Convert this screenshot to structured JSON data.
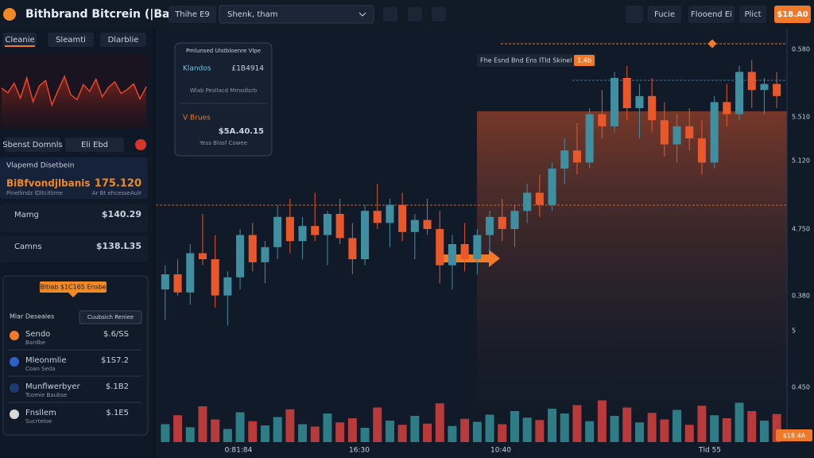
{
  "header": {
    "title": "Bithbrand Bitcrein (|Bathi)",
    "tab": "Thihe E9",
    "search": "Shenk, tham",
    "buttons": [
      "Fucie",
      "Flooend Ei",
      "Plict"
    ],
    "price": "$18.A0"
  },
  "sidebar": {
    "tabs": [
      "Cleanie",
      "Sleamti",
      "Dlarblie"
    ],
    "sparkline": {
      "values": [
        55,
        48,
        62,
        40,
        70,
        35,
        58,
        66,
        30,
        52,
        72,
        45,
        38,
        60,
        50,
        68,
        42,
        56,
        64,
        47,
        53,
        61,
        39,
        57
      ],
      "ylim": [
        0,
        100
      ]
    },
    "buttons": [
      "Sbenst Domnls",
      "Eli Ebd"
    ],
    "watch": {
      "title": "Vlapemd Disetbein",
      "name": "BiBfvondjlbanis",
      "value": "175.120",
      "sub1": "Pinellindz lDltcitlime",
      "sub2": "Ar Bt ehcesseAulr"
    },
    "rows": [
      {
        "name": "Mamg",
        "value": "$140.29"
      },
      {
        "name": "Camns",
        "value": "$138.L35"
      }
    ],
    "popover": "Bltiab $1C165 Ensbe",
    "list": {
      "title": "Mlar Deseales",
      "select": "Cuubsich Reniee",
      "items": [
        {
          "name": "Sendo",
          "value": "$.6/SS",
          "sub": "Bardbe"
        },
        {
          "name": "Mleonmlie",
          "value": "$1S7.2",
          "sub": "Coan Seda"
        },
        {
          "name": "Munflwerbyer",
          "value": "$.1B2",
          "sub": "Tcomie Baubse"
        },
        {
          "name": "Fnsllem",
          "value": "$.1E5",
          "sub": "Sucrteloe"
        }
      ]
    }
  },
  "tooltip": {
    "title": "Pmlunsed Ulstbloenre Vlpe",
    "rows": [
      {
        "name": "Klandos",
        "value": "£1B4914",
        "sub": "Wlab Pesllacd Mmsdlsrb"
      },
      {
        "name": "V Brues",
        "value": "$5A.40.15",
        "sub": "Yess Blasf Cowee"
      }
    ]
  },
  "chart": {
    "type": "candlestick",
    "label": "Fhe Esnd Bnd Ens ITId Skinel",
    "badge": "1.4b",
    "ylim": [
      0,
      100
    ],
    "candles": [
      [
        20,
        28,
        10,
        25
      ],
      [
        25,
        30,
        18,
        19
      ],
      [
        19,
        35,
        15,
        32
      ],
      [
        32,
        45,
        28,
        30
      ],
      [
        30,
        38,
        14,
        18
      ],
      [
        18,
        26,
        8,
        24
      ],
      [
        24,
        40,
        20,
        38
      ],
      [
        38,
        42,
        26,
        29
      ],
      [
        29,
        36,
        22,
        34
      ],
      [
        34,
        48,
        30,
        44
      ],
      [
        44,
        50,
        32,
        36
      ],
      [
        36,
        44,
        30,
        41
      ],
      [
        41,
        52,
        36,
        38
      ],
      [
        38,
        46,
        28,
        45
      ],
      [
        45,
        50,
        35,
        37
      ],
      [
        37,
        42,
        25,
        30
      ],
      [
        30,
        48,
        28,
        46
      ],
      [
        46,
        55,
        40,
        42
      ],
      [
        42,
        50,
        34,
        48
      ],
      [
        48,
        52,
        36,
        39
      ],
      [
        39,
        45,
        30,
        43
      ],
      [
        43,
        50,
        38,
        40
      ],
      [
        40,
        46,
        22,
        28
      ],
      [
        28,
        38,
        20,
        35
      ],
      [
        35,
        42,
        26,
        30
      ],
      [
        30,
        40,
        25,
        38
      ],
      [
        38,
        46,
        32,
        44
      ],
      [
        44,
        50,
        36,
        40
      ],
      [
        40,
        48,
        34,
        46
      ],
      [
        46,
        55,
        42,
        52
      ],
      [
        52,
        58,
        44,
        48
      ],
      [
        48,
        62,
        46,
        60
      ],
      [
        60,
        70,
        55,
        66
      ],
      [
        66,
        75,
        58,
        62
      ],
      [
        62,
        80,
        60,
        78
      ],
      [
        78,
        86,
        70,
        74
      ],
      [
        74,
        92,
        72,
        90
      ],
      [
        90,
        94,
        76,
        80
      ],
      [
        80,
        88,
        70,
        84
      ],
      [
        84,
        90,
        72,
        76
      ],
      [
        76,
        82,
        64,
        68
      ],
      [
        68,
        78,
        62,
        74
      ],
      [
        74,
        80,
        66,
        70
      ],
      [
        70,
        76,
        58,
        62
      ],
      [
        62,
        84,
        60,
        82
      ],
      [
        82,
        88,
        74,
        78
      ],
      [
        78,
        94,
        76,
        92
      ],
      [
        92,
        96,
        80,
        86
      ],
      [
        86,
        90,
        78,
        88
      ],
      [
        88,
        92,
        80,
        84
      ]
    ],
    "volume": {
      "values": [
        30,
        45,
        25,
        60,
        38,
        22,
        50,
        35,
        28,
        42,
        55,
        30,
        26,
        48,
        33,
        40,
        24,
        58,
        36,
        29,
        44,
        31,
        65,
        27,
        39,
        34,
        46,
        30,
        52,
        41,
        37,
        56,
        48,
        62,
        35,
        70,
        44,
        58,
        33,
        49,
        38,
        54,
        29,
        61,
        45,
        40,
        66,
        52,
        36,
        47
      ],
      "ylim": [
        0,
        100
      ]
    },
    "yaxis": [
      "0.580",
      "5.510",
      "5.120",
      "4.750",
      "0.380",
      "5",
      "0.450"
    ],
    "xaxis": [
      "0:81:84",
      "16:30",
      "10:40",
      "Tld 55"
    ],
    "price_tag": "$18.4A"
  }
}
